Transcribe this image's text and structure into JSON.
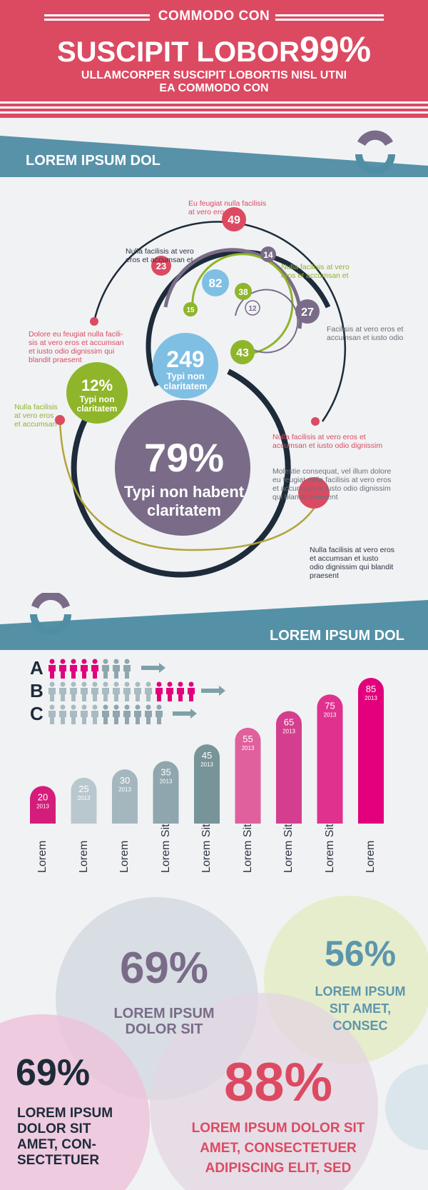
{
  "header": {
    "kicker": "COMMODO CON",
    "headline": "SUSCIPIT LOBOR",
    "headline_pct": "99%",
    "subline1": "ULLAMCORPER SUSCIPIT LOBORTIS NISL UTNI",
    "subline2": "EA COMMODO CON"
  },
  "section1": {
    "title": "LOREM IPSUM DOL",
    "circle_values": [
      "49",
      "14",
      "23",
      "82",
      "38",
      "15",
      "12",
      "27",
      "43"
    ],
    "center_big": {
      "value": "249",
      "label1": "Typi non",
      "label2": "claritatem"
    },
    "small_green": {
      "value": "12%",
      "label1": "Typi non",
      "label2": "claritatem"
    },
    "main_purple": {
      "value": "79%",
      "label1": "Typi non habent",
      "label2": "claritatem"
    },
    "notes": {
      "n1": [
        "Eu feugiat nulla facilisis",
        "at vero eros et"
      ],
      "n2": [
        "Nulla facilisis at vero",
        "eros et accumsan et"
      ],
      "n3": [
        "Nulla facilisis at vero",
        "eros et accumsan et"
      ],
      "n4": [
        "Dolore eu feugiat nulla facili-",
        "sis at vero eros et accumsan",
        "et iusto odio dignissim qui",
        "blandit praesent"
      ],
      "n5": [
        "Facilisis at vero eros et",
        "accumsan et iusto odio"
      ],
      "n6": [
        "Nulla facilisis",
        "at vero eros",
        "et accumsan"
      ],
      "n7": [
        "Nulla facilisis at vero eros et",
        "accumsan et iusto odio dignissim"
      ],
      "n8": [
        "Molestie consequat, vel illum dolore",
        "eu feugiat nulla facilisis at vero eros",
        "et accumsan et iusto odio dignissim",
        "qui blandit praesent"
      ],
      "n9": [
        "Nulla facilisis at vero eros",
        "et accumsan et iusto",
        "odio dignissim qui blandit",
        "praesent"
      ]
    }
  },
  "section2": {
    "title": "LOREM IPSUM DOL",
    "legend_letters": [
      "A",
      "B",
      "C"
    ],
    "bars": [
      {
        "value": "20",
        "year": "2013",
        "label": "Lorem",
        "color": "#d51c7b"
      },
      {
        "value": "25",
        "year": "2013",
        "label": "Lorem",
        "color": "#b9c8ce"
      },
      {
        "value": "30",
        "year": "2013",
        "label": "Lorem",
        "color": "#a4b7be"
      },
      {
        "value": "35",
        "year": "2013",
        "label": "Lorem Sit",
        "color": "#8fa6ae"
      },
      {
        "value": "45",
        "year": "2013",
        "label": "Lorem Sit",
        "color": "#779499"
      },
      {
        "value": "55",
        "year": "2013",
        "label": "Lorem Sit",
        "color": "#e0609e"
      },
      {
        "value": "65",
        "year": "2013",
        "label": "Lorem Sit",
        "color": "#d43e8e"
      },
      {
        "value": "75",
        "year": "2013",
        "label": "Lorem Sit",
        "color": "#e0318f"
      },
      {
        "value": "85",
        "year": "2013",
        "label": "Lorem",
        "color": "#e2007c"
      }
    ]
  },
  "section3": {
    "stat1": {
      "value": "69%",
      "line1": "LOREM IPSUM",
      "line2": "DOLOR SIT"
    },
    "stat2": {
      "value": "56%",
      "line1": "LOREM IPSUM",
      "line2": "SIT AMET,",
      "line3": "CONSEC"
    },
    "stat3": {
      "value": "69%",
      "line1": "LOREM IPSUM",
      "line2": "DOLOR SIT",
      "line3": "AMET, CON-",
      "line4": "SECTETUER"
    },
    "stat4": {
      "value": "88%",
      "line1": "LOREM IPSUM DOLOR SIT",
      "line2": "AMET, CONSECTETUER",
      "line3": "ADIPISCING ELIT, SED"
    }
  },
  "colors": {
    "red": "#dc4a62",
    "teal": "#4f8ea4",
    "navy": "#1d2b3a",
    "purple": "#7a6c88",
    "green": "#8fb52a",
    "lightblue": "#7fbfe4",
    "magenta": "#e2007c"
  }
}
